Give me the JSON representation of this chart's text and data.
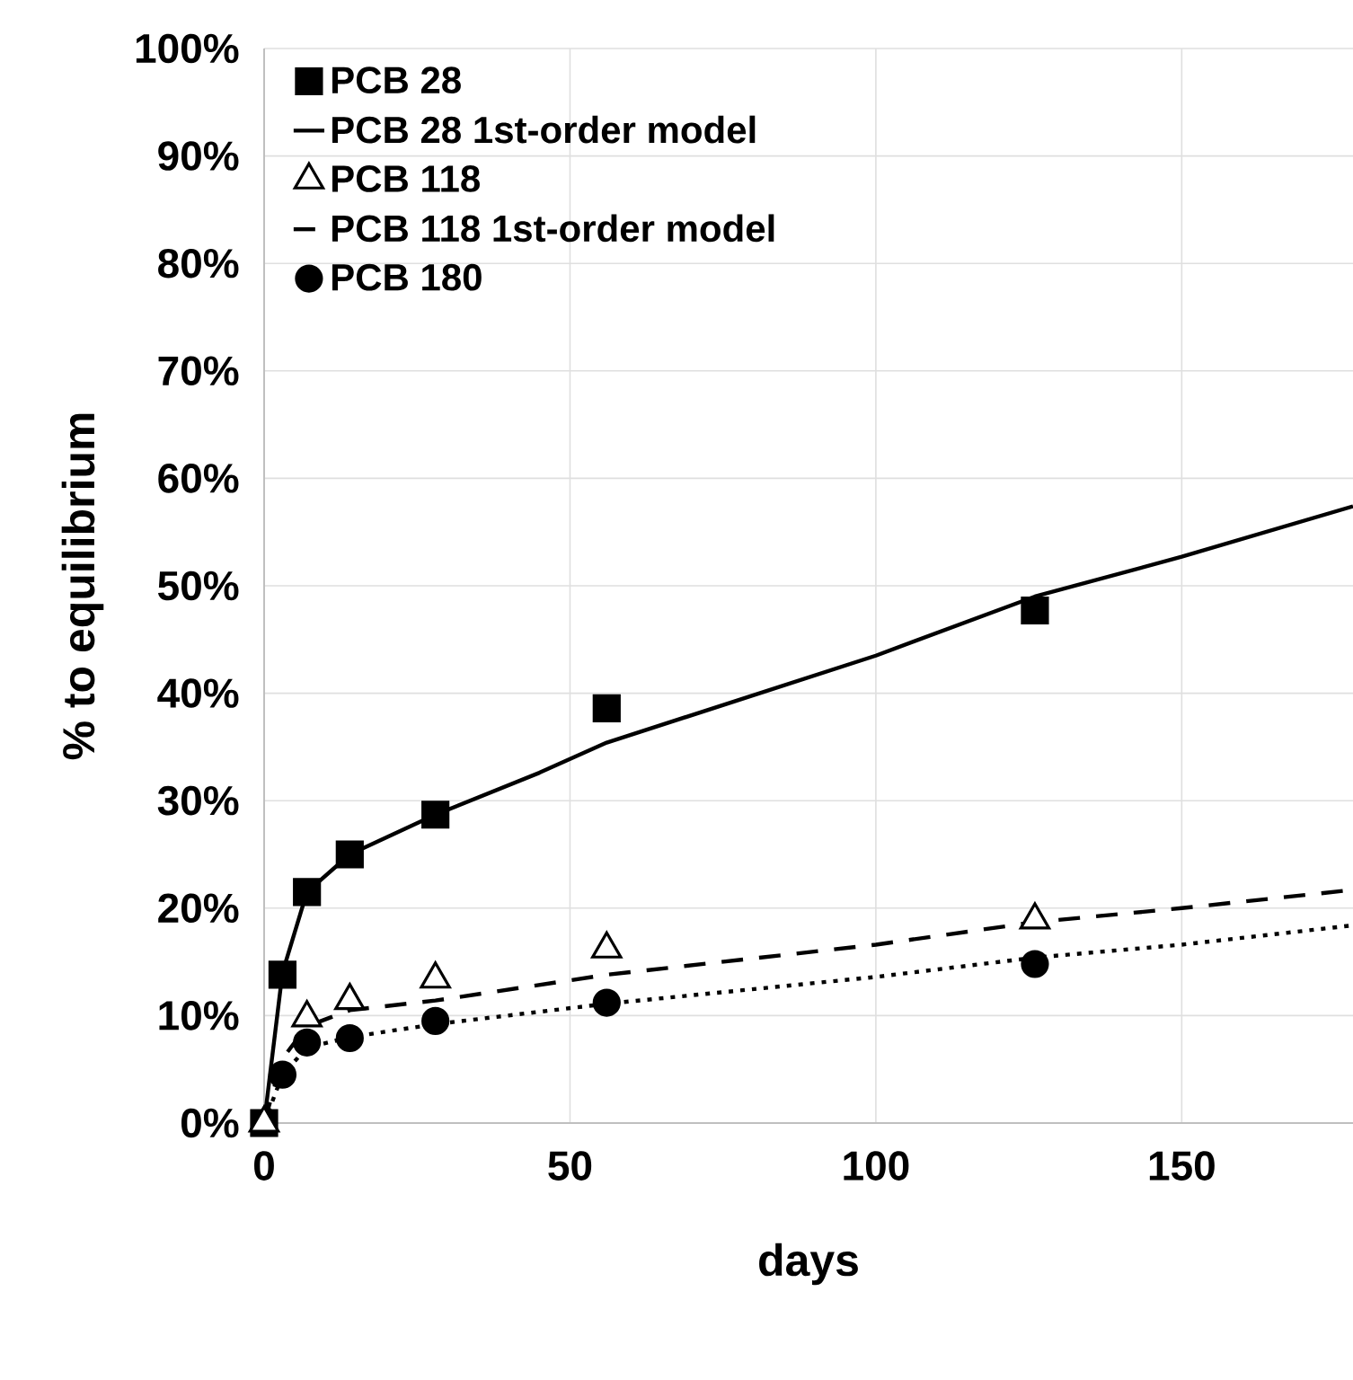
{
  "chart_data": {
    "type": "scatter",
    "xlabel": "days",
    "ylabel": "% to equilibrium",
    "xlim": [
      0,
      178
    ],
    "ylim": [
      0,
      100
    ],
    "xticks": [
      0,
      50,
      100,
      150
    ],
    "yticks": [
      {
        "value": 0,
        "label": "0%"
      },
      {
        "value": 10,
        "label": "10%"
      },
      {
        "value": 20,
        "label": "20%"
      },
      {
        "value": 30,
        "label": "30%"
      },
      {
        "value": 40,
        "label": "40%"
      },
      {
        "value": 50,
        "label": "50%"
      },
      {
        "value": 60,
        "label": "60%"
      },
      {
        "value": 70,
        "label": "70%"
      },
      {
        "value": 80,
        "label": "80%"
      },
      {
        "value": 90,
        "label": "90%"
      },
      {
        "value": 100,
        "label": "100%"
      }
    ],
    "grid": true,
    "legend": "top left",
    "series": [
      {
        "name": "PCB 28",
        "marker": "square",
        "color": "#000000",
        "x": [
          0,
          3,
          7,
          14,
          28,
          56,
          126
        ],
        "values": [
          0,
          13.8,
          21.5,
          25,
          28.7,
          38.6,
          47.7
        ]
      },
      {
        "name": "PCB 28 1st-order model",
        "type": "line",
        "line_style": "solid",
        "color": "#000000",
        "x": [
          0,
          3,
          7,
          14,
          28,
          45,
          56,
          100,
          126,
          150,
          178
        ],
        "values": [
          0,
          14,
          21.5,
          25,
          28.7,
          32.6,
          35.4,
          43.5,
          49,
          52.7,
          57.4
        ]
      },
      {
        "name": "PCB 118",
        "marker": "triangle",
        "color": "#000000",
        "x": [
          0,
          3,
          7,
          14,
          28,
          56,
          126
        ],
        "values": [
          0,
          null,
          9.8,
          11.4,
          13.4,
          16.2,
          18.9
        ]
      },
      {
        "name": "PCB 118 1st-order model",
        "type": "line",
        "line_style": "dashed",
        "color": "#000000",
        "x": [
          0,
          3,
          7,
          14,
          28,
          56,
          100,
          126,
          150,
          178
        ],
        "values": [
          0,
          6,
          9,
          10.5,
          11.4,
          13.8,
          16.6,
          18.7,
          20,
          21.7
        ]
      },
      {
        "name": "PCB 180",
        "marker": "circle",
        "color": "#000000",
        "x": [
          3,
          7,
          14,
          28,
          56,
          126
        ],
        "values": [
          4.5,
          7.5,
          7.9,
          9.5,
          11.2,
          14.8
        ]
      },
      {
        "type": "line",
        "line_style": "dotted",
        "color": "#000000",
        "x": [
          0,
          3,
          7,
          14,
          28,
          56,
          100,
          126,
          150,
          178
        ],
        "values": [
          0,
          4.5,
          7,
          8,
          9.2,
          11.1,
          13.6,
          15.4,
          16.6,
          18.4
        ]
      }
    ]
  }
}
